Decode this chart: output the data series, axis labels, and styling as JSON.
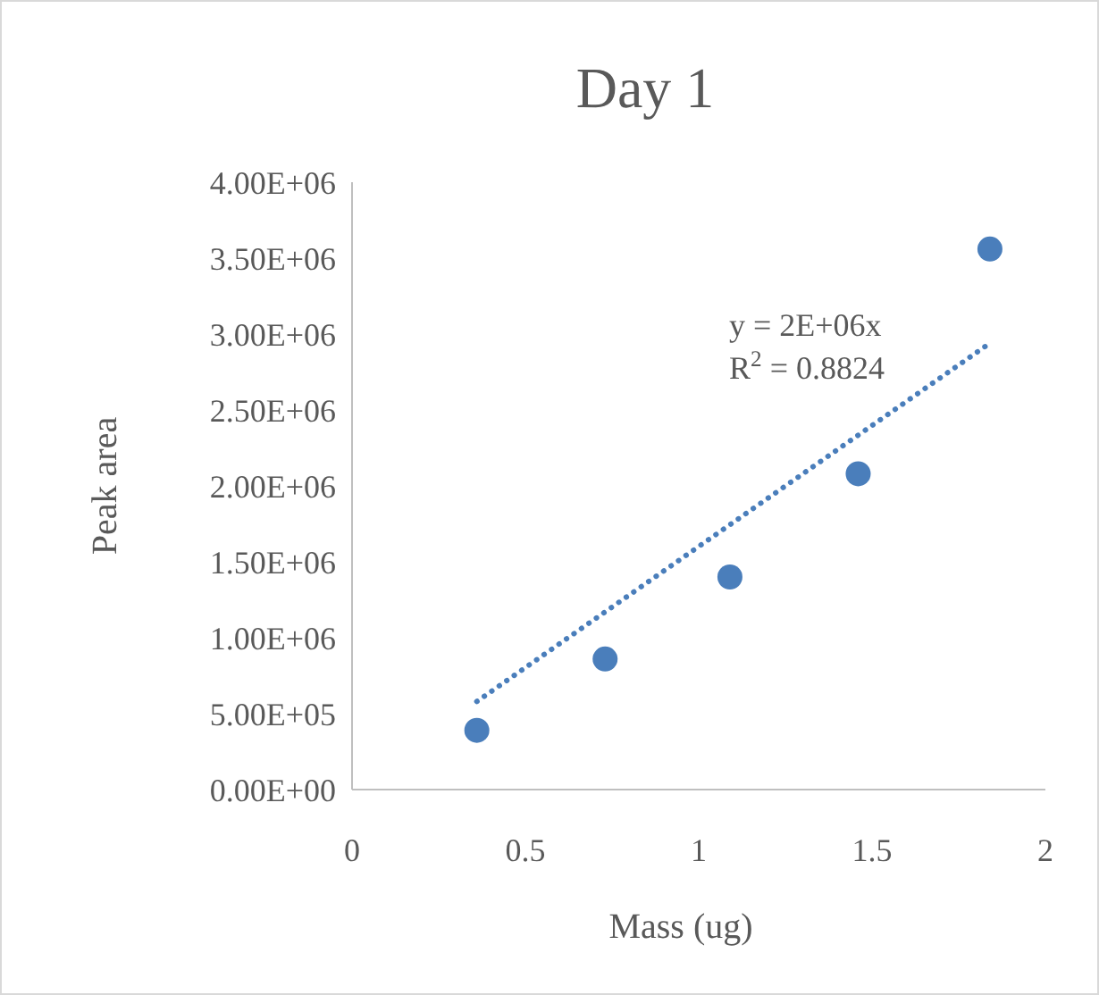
{
  "chart_data": {
    "type": "scatter",
    "title": "Day 1",
    "xlabel": "Mass (ug)",
    "ylabel": "Peak area",
    "xlim": [
      0,
      2
    ],
    "xticks": [
      0,
      0.5,
      1,
      1.5,
      2
    ],
    "ylim": [
      0,
      4000000
    ],
    "yticks": [
      {
        "value": 0,
        "label": "0.00E+00"
      },
      {
        "value": 500000,
        "label": "5.00E+05"
      },
      {
        "value": 1000000,
        "label": "1.00E+06"
      },
      {
        "value": 1500000,
        "label": "1.50E+06"
      },
      {
        "value": 2000000,
        "label": "2.00E+06"
      },
      {
        "value": 2500000,
        "label": "2.50E+06"
      },
      {
        "value": 3000000,
        "label": "3.00E+06"
      },
      {
        "value": 3500000,
        "label": "3.50E+06"
      },
      {
        "value": 4000000,
        "label": "4.00E+06"
      }
    ],
    "grid": false,
    "series": [
      {
        "type": "scatter",
        "marker": "circle",
        "color": "#4a7ebb",
        "x": [
          0.36,
          0.73,
          1.09,
          1.46,
          1.84
        ],
        "values": [
          390000,
          860000,
          1400000,
          2080000,
          3560000
        ]
      },
      {
        "type": "line",
        "marker": "none",
        "color": "#4a7ebb",
        "line_style": "dotted",
        "x": [
          0.36,
          1.84
        ],
        "values": [
          580000,
          2940000
        ]
      }
    ],
    "annotations": [
      "y = 2E+06x",
      "R$^{2}$ = 0.8824"
    ]
  }
}
